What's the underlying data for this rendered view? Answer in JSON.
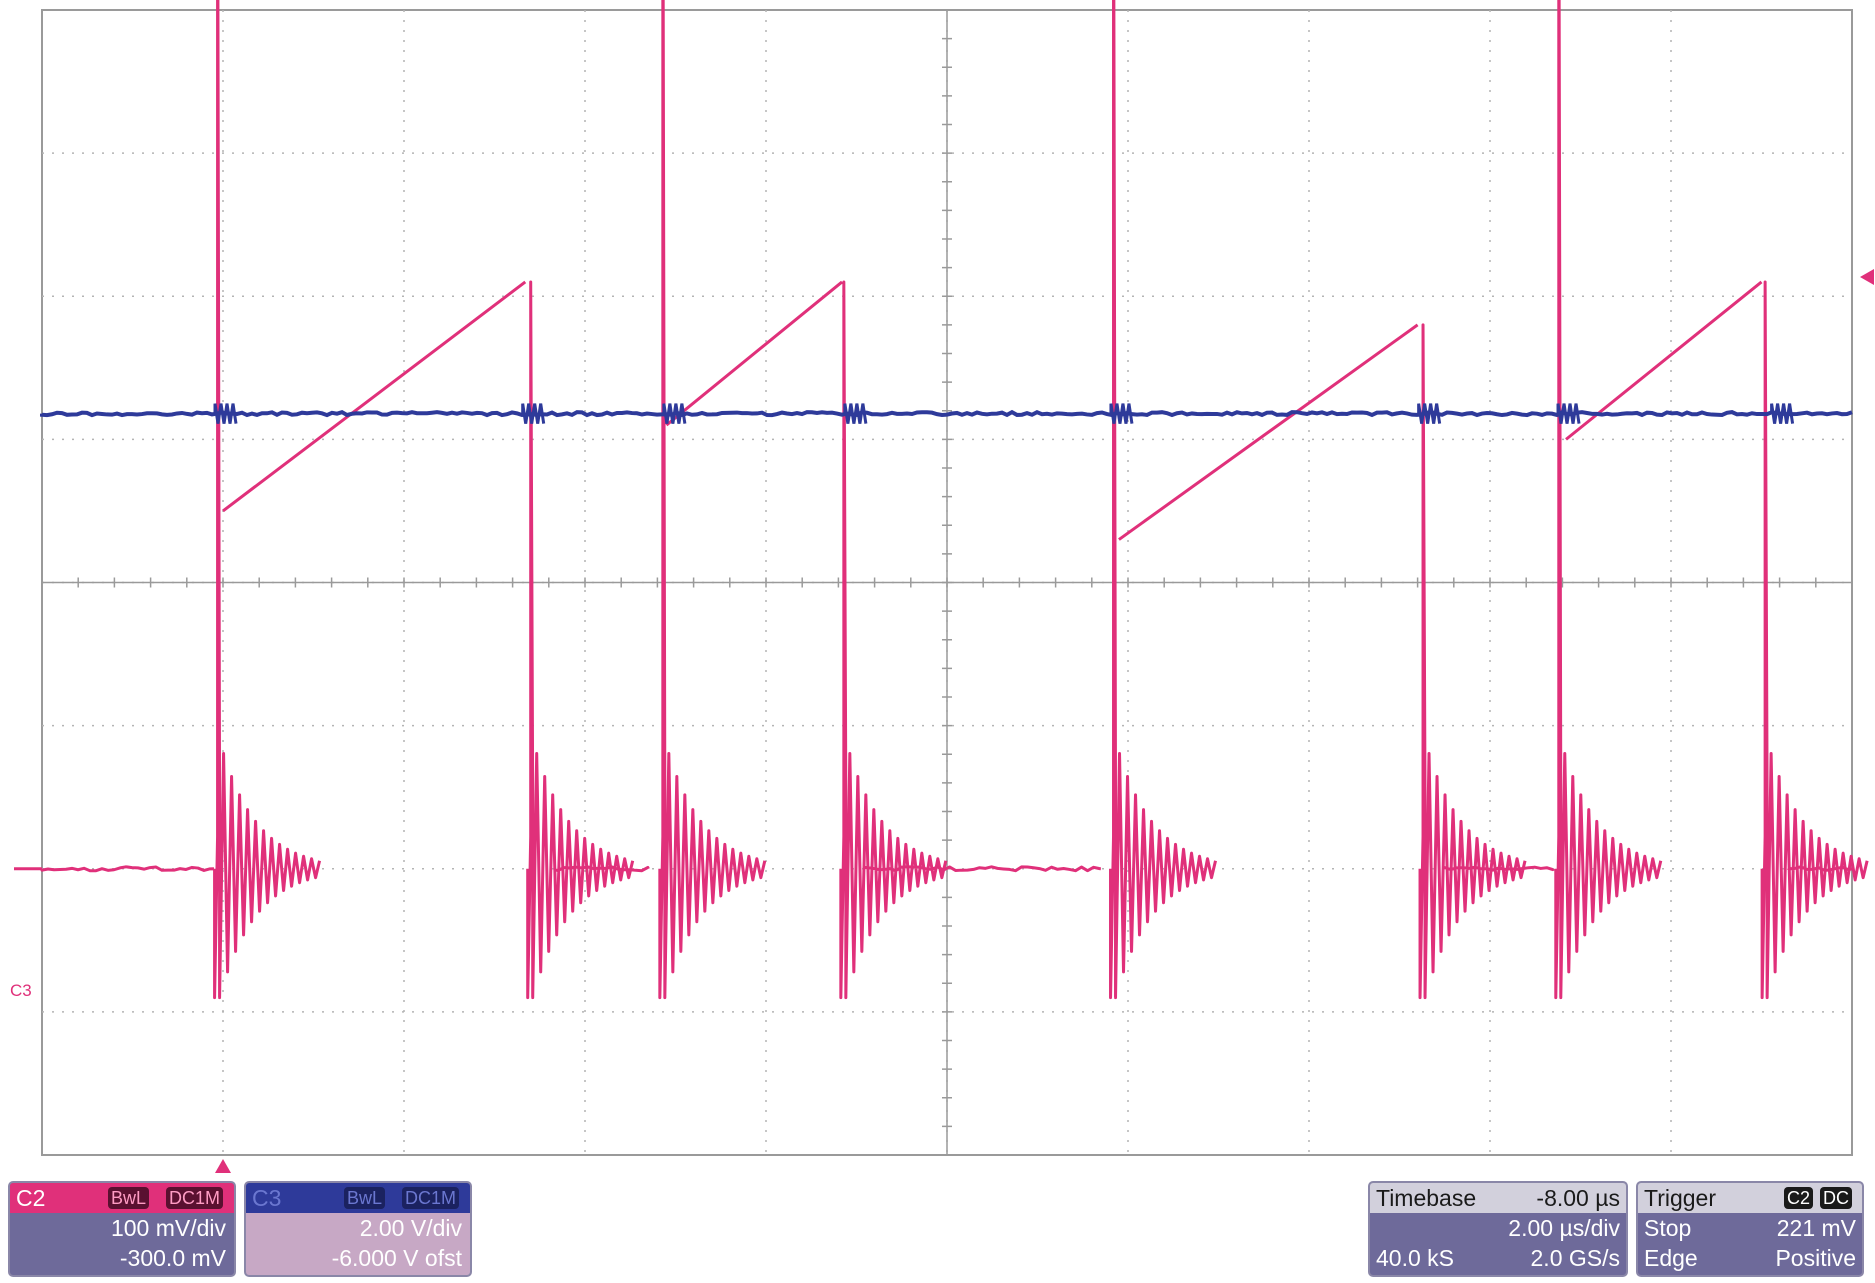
{
  "trace_label": "C3",
  "channel_c2": {
    "name": "C2",
    "bandwidth_badge": "BwL",
    "coupling_badge": "DC1M",
    "scale": "100 mV/div",
    "offset": "-300.0 mV",
    "color": "#e0307a"
  },
  "channel_c3": {
    "name": "C3",
    "bandwidth_badge": "BwL",
    "coupling_badge": "DC1M",
    "scale": "2.00 V/div",
    "offset": "-6.000 V ofst",
    "color": "#2e3a9a"
  },
  "timebase": {
    "label": "Timebase",
    "delay": "-8.00 µs",
    "scale": "2.00 µs/div",
    "samples": "40.0 kS",
    "rate": "2.0 GS/s"
  },
  "trigger": {
    "label": "Trigger",
    "source_badge": "C2",
    "coupling_badge": "DC",
    "mode": "Stop",
    "level": "221 mV",
    "type": "Edge",
    "slope": "Positive"
  },
  "colors": {
    "c2_trace": "#e0307a",
    "c3_trace": "#2e3a9a",
    "grid": "#b4b4b4",
    "panel_body": "#6e6a9a",
    "panel_header": "#d2d0dc"
  },
  "chart_data": {
    "type": "line",
    "x_divisions": 10,
    "y_divisions": 8,
    "series": [
      {
        "name": "C2",
        "color": "#e0307a",
        "segments": [
          {
            "kind": "flat",
            "x": [
              0,
              0.95
            ],
            "y": -2.0
          },
          {
            "kind": "ring",
            "x": 0.97,
            "spike": 5.2,
            "low": -2.9
          },
          {
            "kind": "ramp",
            "x": [
              1.0,
              2.67
            ],
            "y": [
              0.5,
              2.1
            ]
          },
          {
            "kind": "ring",
            "x": 2.7,
            "spike": 2.1,
            "low": -2.9
          },
          {
            "kind": "flat",
            "x": [
              2.85,
              3.35
            ],
            "y": -2.0
          },
          {
            "kind": "ring",
            "x": 3.43,
            "spike": 5.3,
            "low": -2.9
          },
          {
            "kind": "ramp",
            "x": [
              3.45,
              4.42
            ],
            "y": [
              1.1,
              2.1
            ]
          },
          {
            "kind": "ring",
            "x": 4.43,
            "spike": 2.1,
            "low": -2.9
          },
          {
            "kind": "flat",
            "x": [
              4.55,
              5.85
            ],
            "y": -2.0
          },
          {
            "kind": "ring",
            "x": 5.92,
            "spike": 5.2,
            "low": -2.9
          },
          {
            "kind": "ramp",
            "x": [
              5.95,
              7.6
            ],
            "y": [
              0.3,
              1.8
            ]
          },
          {
            "kind": "ring",
            "x": 7.63,
            "spike": 1.8,
            "low": -2.9
          },
          {
            "kind": "flat",
            "x": [
              7.75,
              8.35
            ],
            "y": -2.0
          },
          {
            "kind": "ring",
            "x": 8.38,
            "spike": 5.3,
            "low": -2.9
          },
          {
            "kind": "ramp",
            "x": [
              8.42,
              9.5
            ],
            "y": [
              1.0,
              2.1
            ]
          },
          {
            "kind": "ring",
            "x": 9.52,
            "spike": 2.1,
            "low": -2.9
          },
          {
            "kind": "flat",
            "x": [
              9.65,
              10.0
            ],
            "y": -2.0
          }
        ]
      },
      {
        "name": "C3",
        "color": "#2e3a9a",
        "level": 1.18,
        "glitches": [
          1.0,
          2.7,
          3.48,
          4.48,
          5.95,
          7.65,
          8.42,
          9.6
        ]
      }
    ]
  }
}
